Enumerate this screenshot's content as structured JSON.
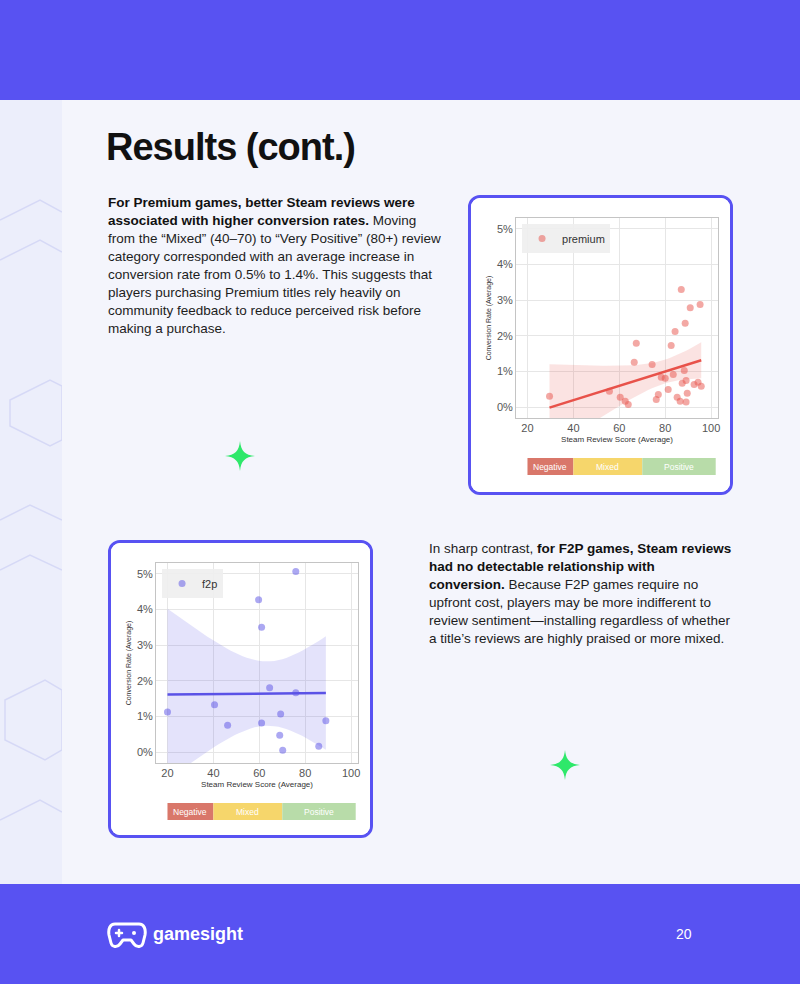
{
  "title": "Results (cont.)",
  "paragraphs": [
    {
      "runs": [
        {
          "text": "For Premium games, better Steam reviews were associated with higher conversion rates.",
          "bold": true
        },
        {
          "text": " Moving from the “Mixed” (40–70) to “Very Positive” (80+) review category corresponded with an average increase in conversion rate from 0.5% to 1.4%. This suggests that players purchasing Premium titles rely heavily on community feedback to reduce perceived risk before making a purchase.",
          "bold": false
        }
      ]
    },
    {
      "runs": [
        {
          "text": "In sharp contrast, ",
          "bold": false
        },
        {
          "text": "for F2P games, Steam reviews had no detectable relationship with conversion.",
          "bold": true
        },
        {
          "text": " Because F2P games require no upfront cost, players may be more indifferent to review sentiment—installing regardless of whether a title’s reviews are highly praised or more mixed.",
          "bold": false
        }
      ]
    }
  ],
  "chart_data": [
    {
      "type": "scatter",
      "x_label": "Steam Review Score (Average)",
      "y_label": "Conversion Rate (Average)",
      "series": [
        {
          "name": "premium",
          "color": "#e8524a",
          "marker": "circle",
          "x": [
            29.6,
            55.7,
            60.4,
            62.6,
            63.9,
            66.5,
            67.4,
            74.3,
            76.1,
            77.0,
            78.3,
            80.0,
            81.3,
            82.6,
            83.5,
            84.3,
            85.2,
            86.5,
            87.0,
            87.4,
            88.3,
            88.7,
            89.1,
            89.6,
            90.9,
            92.6,
            94.3,
            95.2,
            95.7,
            89.1
          ],
          "values": [
            0.31,
            0.45,
            0.28,
            0.17,
            0.08,
            1.26,
            1.79,
            1.2,
            0.22,
            0.36,
            0.84,
            0.81,
            0.5,
            1.73,
            0.92,
            2.12,
            0.28,
            0.17,
            3.3,
            0.67,
            1.03,
            2.35,
            0.75,
            0.39,
            2.79,
            0.64,
            0.7,
            2.88,
            0.59,
            0.15
          ]
        }
      ],
      "xlim": [
        15,
        103
      ],
      "xticks": [
        20,
        40,
        60,
        80,
        100
      ],
      "ylim": [
        -0.3,
        5.3
      ],
      "yticks": [
        {
          "value": 0,
          "label": "0%"
        },
        {
          "value": 1,
          "label": "1%"
        },
        {
          "value": 2,
          "label": "2%"
        },
        {
          "value": 3,
          "label": "3%"
        },
        {
          "value": 4,
          "label": "4%"
        },
        {
          "value": 5,
          "label": "5%"
        }
      ],
      "grid": true,
      "legend": "top-left",
      "bands": [
        {
          "label": "Negative",
          "from": 20,
          "to": 40,
          "color": "#d9776a"
        },
        {
          "label": "Mixed",
          "from": 40,
          "to": 70,
          "color": "#f6d66b"
        },
        {
          "label": "Positive",
          "from": 70,
          "to": 102,
          "color": "#b8dca9"
        }
      ]
    },
    {
      "type": "scatter",
      "x_label": "Steam Review Score (Average)",
      "y_label": "Conversion Rate (Average)",
      "series": [
        {
          "name": "f2p",
          "color": "#5a52e6",
          "marker": "circle",
          "x": [
            20,
            40.5,
            46.2,
            59.7,
            61.0,
            61.0,
            64.5,
            68.9,
            69.3,
            70.2,
            75.9,
            75.9,
            85.9,
            89.0
          ],
          "values": [
            1.13,
            1.33,
            0.76,
            4.27,
            0.82,
            3.5,
            1.81,
            0.48,
            1.07,
            0.06,
            5.06,
            1.67,
            0.17,
            0.88
          ]
        }
      ],
      "xlim": [
        15,
        103
      ],
      "xticks": [
        20,
        40,
        60,
        80,
        100
      ],
      "ylim": [
        -0.3,
        5.3
      ],
      "yticks": [
        {
          "value": 0,
          "label": "0%"
        },
        {
          "value": 1,
          "label": "1%"
        },
        {
          "value": 2,
          "label": "2%"
        },
        {
          "value": 3,
          "label": "3%"
        },
        {
          "value": 4,
          "label": "4%"
        },
        {
          "value": 5,
          "label": "5%"
        }
      ],
      "grid": true,
      "legend": "top-left",
      "bands": [
        {
          "label": "Negative",
          "from": 20,
          "to": 40,
          "color": "#d9776a"
        },
        {
          "label": "Mixed",
          "from": 40,
          "to": 70,
          "color": "#f6d66b"
        },
        {
          "label": "Positive",
          "from": 70,
          "to": 102,
          "color": "#b8dca9"
        }
      ]
    }
  ],
  "footer": {
    "brand": "gamesight",
    "page": "20"
  }
}
